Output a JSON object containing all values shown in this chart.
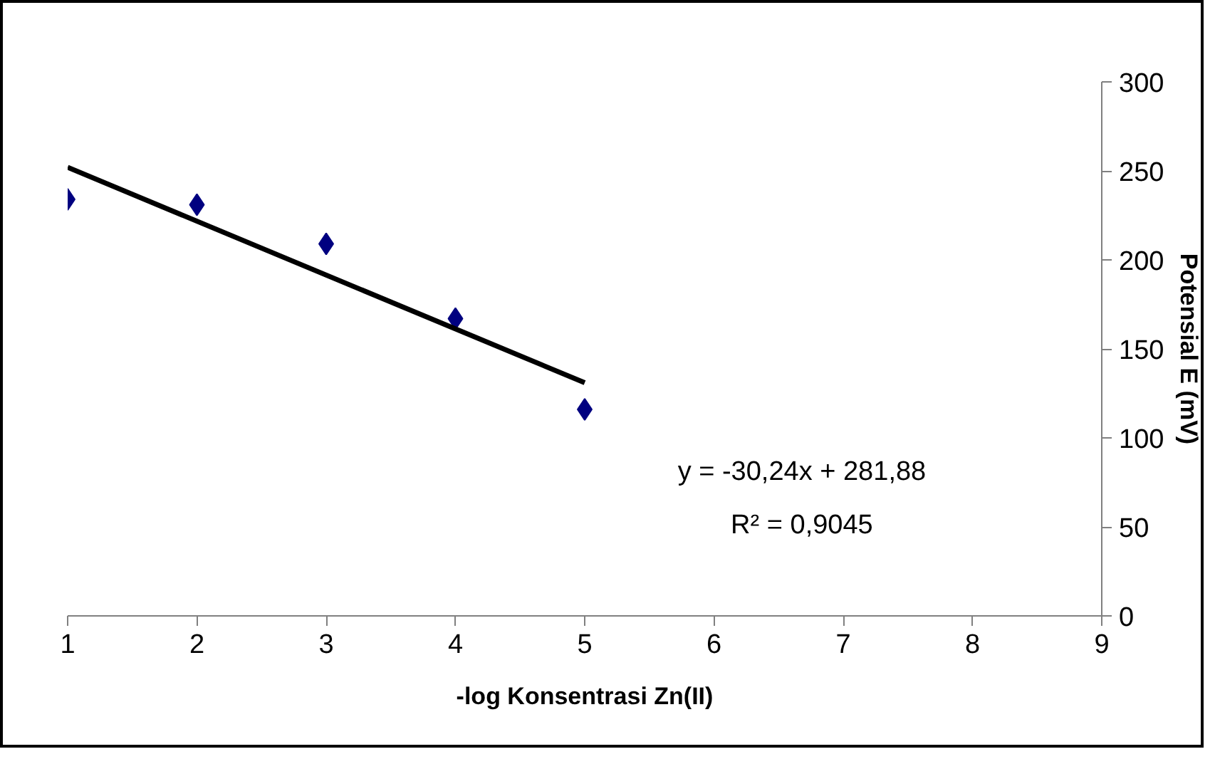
{
  "chart_data": {
    "type": "scatter",
    "xlabel": "-log Konsentrasi Zn(II)",
    "ylabel": "Potensial E (mV)",
    "series": [
      {
        "color": "#000080",
        "marker": "diamond",
        "x": [
          1,
          2,
          3,
          4,
          5
        ],
        "values": [
          234,
          231,
          209,
          167,
          116
        ]
      },
      {
        "type": "line",
        "color": "#000000",
        "line_style": "solid",
        "marker": "none",
        "x": [
          1,
          5
        ],
        "values": [
          252,
          131
        ]
      }
    ],
    "annotations": [
      "y = -30,24x + 281,88",
      "R² = 0,9045"
    ],
    "xlim": [
      1,
      9
    ],
    "ylim": [
      0,
      300
    ],
    "xticks": [
      1,
      2,
      3,
      4,
      5,
      6,
      7,
      8,
      9
    ],
    "yticks": [
      0,
      50,
      100,
      150,
      200,
      250,
      300
    ],
    "grid": false
  }
}
